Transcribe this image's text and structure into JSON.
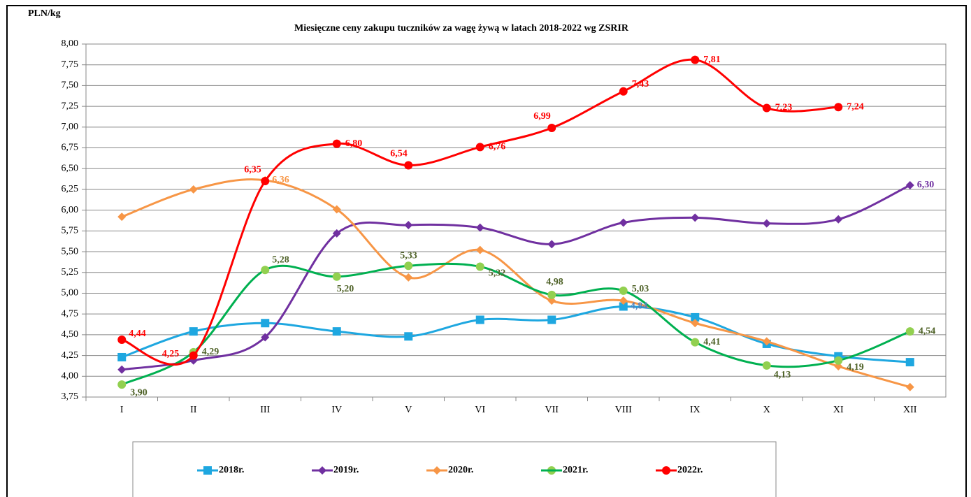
{
  "chart_data": {
    "type": "line",
    "title": "Miesięczne ceny zakupu tuczników za wagę żywą w latach 2018-2022 wg ZSRIR",
    "y_label": "PLN/kg",
    "categories": [
      "I",
      "II",
      "III",
      "IV",
      "V",
      "VI",
      "VII",
      "VIII",
      "IX",
      "X",
      "XI",
      "XII"
    ],
    "ylim": [
      3.75,
      8
    ],
    "yticks": [
      {
        "value": 3.75,
        "label": "3,75"
      },
      {
        "value": 4,
        "label": "4,00"
      },
      {
        "value": 4.25,
        "label": "4,25"
      },
      {
        "value": 4.5,
        "label": "4,50"
      },
      {
        "value": 4.75,
        "label": "4,75"
      },
      {
        "value": 5,
        "label": "5,00"
      },
      {
        "value": 5.25,
        "label": "5,25"
      },
      {
        "value": 5.5,
        "label": "5,50"
      },
      {
        "value": 5.75,
        "label": "5,75"
      },
      {
        "value": 6,
        "label": "6,00"
      },
      {
        "value": 6.25,
        "label": "6,25"
      },
      {
        "value": 6.5,
        "label": "6,50"
      },
      {
        "value": 6.75,
        "label": "6,75"
      },
      {
        "value": 7,
        "label": "7,00"
      },
      {
        "value": 7.25,
        "label": "7,25"
      },
      {
        "value": 7.5,
        "label": "7,50"
      },
      {
        "value": 7.75,
        "label": "7,75"
      },
      {
        "value": 8,
        "label": "8,00"
      }
    ],
    "grid": true,
    "series": [
      {
        "name": "2018r.",
        "color": "#1ea7e0",
        "marker": "square",
        "label_color": "#4f81bd",
        "values": [
          4.23,
          4.54,
          4.64,
          4.54,
          4.48,
          4.68,
          4.68,
          4.84,
          4.71,
          4.39,
          4.24,
          4.17
        ],
        "value_labels": [
          null,
          null,
          null,
          null,
          null,
          null,
          null,
          "4,84",
          null,
          null,
          null,
          null
        ]
      },
      {
        "name": "2019r.",
        "color": "#7030a0",
        "marker": "diamond",
        "label_color": "#7030a0",
        "values": [
          4.08,
          4.19,
          4.47,
          5.72,
          5.82,
          5.79,
          5.59,
          5.85,
          5.91,
          5.84,
          5.89,
          6.3
        ],
        "value_labels": [
          null,
          null,
          null,
          null,
          null,
          null,
          null,
          null,
          null,
          null,
          null,
          "6,30"
        ]
      },
      {
        "name": "2020r.",
        "color": "#f79646",
        "marker": "diamond",
        "label_color": "#f79646",
        "values": [
          5.92,
          6.25,
          6.36,
          6.01,
          5.19,
          5.52,
          4.91,
          4.91,
          4.64,
          4.42,
          4.12,
          3.87
        ],
        "value_labels": [
          null,
          null,
          "6,36",
          null,
          null,
          null,
          null,
          null,
          null,
          null,
          null,
          null
        ]
      },
      {
        "name": "2021r.",
        "color": "#00b050",
        "marker": "circle",
        "marker_color": "#92d050",
        "label_color": "#4f6228",
        "values": [
          3.9,
          4.29,
          5.28,
          5.2,
          5.33,
          5.32,
          4.98,
          5.03,
          4.41,
          4.13,
          4.19,
          4.54
        ],
        "value_labels": [
          "3,90",
          "4,29",
          "5,28",
          "5,20",
          "5,33",
          "5,32",
          "4,98",
          "5,03",
          "4,41",
          "4,13",
          "4,19",
          "4,54"
        ]
      },
      {
        "name": "2022r.",
        "color": "#ff0000",
        "marker": "circle",
        "label_color": "#ff0000",
        "values": [
          4.44,
          4.25,
          6.35,
          6.8,
          6.54,
          6.76,
          6.99,
          7.43,
          7.81,
          7.23,
          7.24,
          null
        ],
        "value_labels": [
          "4,44",
          "4,25",
          "6,35",
          "6,80",
          "6,54",
          "6,76",
          "6,99",
          "7,43",
          "7,81",
          "7,23",
          "7,24",
          null
        ]
      }
    ]
  }
}
